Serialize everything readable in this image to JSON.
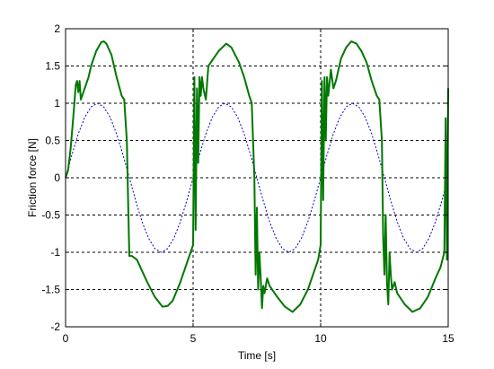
{
  "chart_data": {
    "type": "line",
    "title": "",
    "xlabel": "Time [s]",
    "ylabel": "Friction force [N]",
    "xlim": [
      0,
      15
    ],
    "ylim": [
      -2,
      2
    ],
    "xticks": [
      0,
      5,
      10,
      15
    ],
    "yticks": [
      -2,
      -1.5,
      -1,
      -0.5,
      0,
      0.5,
      1,
      1.5,
      2
    ],
    "xtick_labels": [
      "0",
      "5",
      "10",
      "15"
    ],
    "ytick_labels": [
      "-2",
      "-1.5",
      "-1",
      "-0.5",
      "0",
      "0.5",
      "1",
      "1.5",
      "2"
    ],
    "grid": true,
    "legend": "none",
    "series": [
      {
        "color": "#0000cc",
        "style": "dashed",
        "x": [
          0,
          0.25,
          0.5,
          0.75,
          1.0,
          1.25,
          1.5,
          1.75,
          2.0,
          2.25,
          2.5,
          2.75,
          3.0,
          3.25,
          3.5,
          3.75,
          4.0,
          4.25,
          4.5,
          4.75,
          5.0,
          5.25,
          5.5,
          5.75,
          6.0,
          6.25,
          6.5,
          6.75,
          7.0,
          7.25,
          7.5,
          7.75,
          8.0,
          8.25,
          8.5,
          8.75,
          9.0,
          9.25,
          9.5,
          9.75,
          10.0,
          10.25,
          10.5,
          10.75,
          11.0,
          11.25,
          11.5,
          11.75,
          12.0,
          12.25,
          12.5,
          12.75,
          13.0,
          13.25,
          13.5,
          13.75,
          14.0,
          14.25,
          14.5,
          14.75,
          15.0
        ],
        "y": [
          0,
          0.31,
          0.59,
          0.81,
          0.95,
          1.0,
          0.95,
          0.81,
          0.59,
          0.31,
          0,
          -0.31,
          -0.59,
          -0.81,
          -0.95,
          -1.0,
          -0.95,
          -0.81,
          -0.59,
          -0.31,
          0,
          0.31,
          0.59,
          0.81,
          0.95,
          1.0,
          0.95,
          0.81,
          0.59,
          0.31,
          0,
          -0.31,
          -0.59,
          -0.81,
          -0.95,
          -1.0,
          -0.95,
          -0.81,
          -0.59,
          -0.31,
          0,
          0.31,
          0.59,
          0.81,
          0.95,
          1.0,
          0.95,
          0.81,
          0.59,
          0.31,
          0,
          -0.31,
          -0.59,
          -0.81,
          -0.95,
          -1.0,
          -0.95,
          -0.81,
          -0.59,
          -0.31,
          0
        ]
      },
      {
        "color": "#007700",
        "style": "solid",
        "x": [
          0,
          0.1,
          0.2,
          0.3,
          0.4,
          0.45,
          0.5,
          0.55,
          0.6,
          0.7,
          0.8,
          0.9,
          1.0,
          1.2,
          1.4,
          1.5,
          1.6,
          1.8,
          2.0,
          2.2,
          2.3,
          2.4,
          2.45,
          2.5,
          2.6,
          2.8,
          3.0,
          3.2,
          3.5,
          3.8,
          4.0,
          4.2,
          4.5,
          4.8,
          4.9,
          5.0,
          5.05,
          5.1,
          5.15,
          5.2,
          5.25,
          5.3,
          5.35,
          5.4,
          5.5,
          5.6,
          5.8,
          6.0,
          6.3,
          6.5,
          6.8,
          7.0,
          7.2,
          7.3,
          7.4,
          7.45,
          7.5,
          7.55,
          7.6,
          7.65,
          7.7,
          7.75,
          7.8,
          7.9,
          8.0,
          8.3,
          8.6,
          8.9,
          9.2,
          9.5,
          9.7,
          9.9,
          10.0,
          10.05,
          10.1,
          10.15,
          10.2,
          10.25,
          10.3,
          10.4,
          10.5,
          10.6,
          10.8,
          11.0,
          11.2,
          11.4,
          11.6,
          11.8,
          12.0,
          12.2,
          12.3,
          12.4,
          12.45,
          12.5,
          12.55,
          12.6,
          12.65,
          12.7,
          12.75,
          12.8,
          12.9,
          13.0,
          13.3,
          13.6,
          13.9,
          14.2,
          14.5,
          14.7,
          14.85,
          14.9,
          14.95,
          15.0
        ],
        "y": [
          0,
          0.1,
          0.4,
          0.8,
          1.25,
          1.3,
          1.15,
          1.3,
          1.05,
          1.15,
          1.25,
          1.35,
          1.5,
          1.7,
          1.82,
          1.83,
          1.8,
          1.65,
          1.35,
          1.1,
          1.05,
          0.5,
          -0.3,
          -1.05,
          -1.05,
          -1.1,
          -1.25,
          -1.4,
          -1.6,
          -1.73,
          -1.72,
          -1.65,
          -1.4,
          -1.1,
          -1.0,
          -0.9,
          1.35,
          -0.7,
          1.2,
          0.2,
          1.35,
          1.1,
          1.35,
          1.2,
          1.05,
          1.5,
          1.6,
          1.7,
          1.8,
          1.75,
          1.55,
          1.35,
          1.1,
          1.0,
          0.0,
          -1.3,
          -0.4,
          -1.5,
          -1.0,
          -1.35,
          -1.75,
          -1.45,
          -1.55,
          -1.35,
          -1.45,
          -1.6,
          -1.73,
          -1.8,
          -1.7,
          -1.5,
          -1.3,
          -1.1,
          -0.9,
          1.3,
          -0.3,
          1.35,
          0.5,
          1.35,
          1.1,
          1.45,
          1.2,
          1.3,
          1.6,
          1.75,
          1.83,
          1.8,
          1.7,
          1.55,
          1.3,
          1.1,
          1.05,
          0.5,
          -0.8,
          -1.3,
          -0.5,
          -1.4,
          -1.7,
          -1.0,
          -1.3,
          -1.5,
          -1.4,
          -1.55,
          -1.7,
          -1.8,
          -1.75,
          -1.6,
          -1.35,
          -1.2,
          -1.0,
          0.8,
          -1.1,
          1.2
        ]
      }
    ]
  }
}
